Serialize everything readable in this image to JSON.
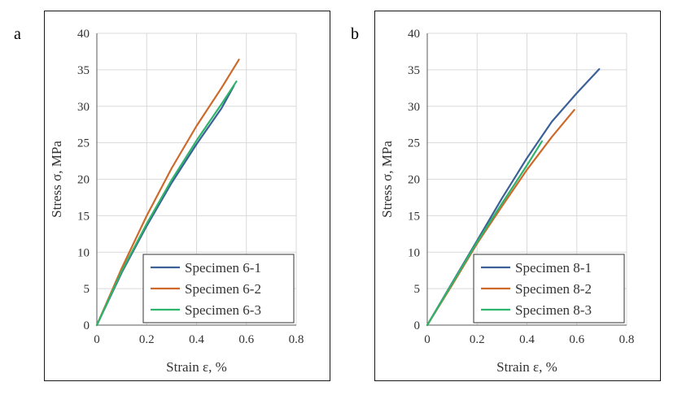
{
  "panels": [
    {
      "letter": "a"
    },
    {
      "letter": "b"
    }
  ],
  "chart_data": [
    {
      "type": "line",
      "xlabel": "Strain ε, %",
      "ylabel": "Stress σ, MPa",
      "xlim": [
        0,
        0.8
      ],
      "ylim": [
        0,
        40
      ],
      "xticks": [
        0,
        0.2,
        0.4,
        0.6,
        0.8
      ],
      "yticks": [
        0,
        5,
        10,
        15,
        20,
        25,
        30,
        35,
        40
      ],
      "grid": true,
      "legend_position": "bottom-right",
      "series": [
        {
          "name": "Specimen 6-1",
          "color": "#3b6196",
          "points": [
            [
              0,
              0
            ],
            [
              0.1,
              7.2
            ],
            [
              0.2,
              13.6
            ],
            [
              0.3,
              19.5
            ],
            [
              0.4,
              24.8
            ],
            [
              0.5,
              29.7
            ],
            [
              0.55,
              32.8
            ]
          ]
        },
        {
          "name": "Specimen 6-2",
          "color": "#cd6a2b",
          "points": [
            [
              0,
              0
            ],
            [
              0.1,
              7.8
            ],
            [
              0.2,
              15.0
            ],
            [
              0.3,
              21.5
            ],
            [
              0.4,
              27.3
            ],
            [
              0.5,
              32.5
            ],
            [
              0.57,
              36.4
            ]
          ]
        },
        {
          "name": "Specimen 6-3",
          "color": "#2fb46b",
          "points": [
            [
              0,
              0
            ],
            [
              0.1,
              7.4
            ],
            [
              0.2,
              13.9
            ],
            [
              0.3,
              19.9
            ],
            [
              0.4,
              25.3
            ],
            [
              0.5,
              30.3
            ],
            [
              0.56,
              33.4
            ]
          ]
        }
      ]
    },
    {
      "type": "line",
      "xlabel": "Strain ε, %",
      "ylabel": "Stress σ, MPa",
      "xlim": [
        0,
        0.8
      ],
      "ylim": [
        0,
        40
      ],
      "xticks": [
        0,
        0.2,
        0.4,
        0.6,
        0.8
      ],
      "yticks": [
        0,
        5,
        10,
        15,
        20,
        25,
        30,
        35,
        40
      ],
      "grid": true,
      "legend_position": "bottom-right",
      "series": [
        {
          "name": "Specimen 8-1",
          "color": "#3b6196",
          "points": [
            [
              0,
              0
            ],
            [
              0.1,
              5.8
            ],
            [
              0.2,
              11.6
            ],
            [
              0.3,
              17.4
            ],
            [
              0.4,
              22.9
            ],
            [
              0.5,
              27.9
            ],
            [
              0.6,
              31.8
            ],
            [
              0.69,
              35.1
            ]
          ]
        },
        {
          "name": "Specimen 8-2",
          "color": "#cd6a2b",
          "points": [
            [
              0,
              0
            ],
            [
              0.1,
              5.5
            ],
            [
              0.2,
              11.2
            ],
            [
              0.3,
              16.3
            ],
            [
              0.4,
              21.3
            ],
            [
              0.5,
              25.8
            ],
            [
              0.59,
              29.5
            ]
          ]
        },
        {
          "name": "Specimen 8-3",
          "color": "#2fb46b",
          "points": [
            [
              0,
              0
            ],
            [
              0.1,
              5.7
            ],
            [
              0.2,
              11.4
            ],
            [
              0.3,
              16.7
            ],
            [
              0.4,
              21.9
            ],
            [
              0.46,
              25.2
            ]
          ]
        }
      ]
    }
  ]
}
